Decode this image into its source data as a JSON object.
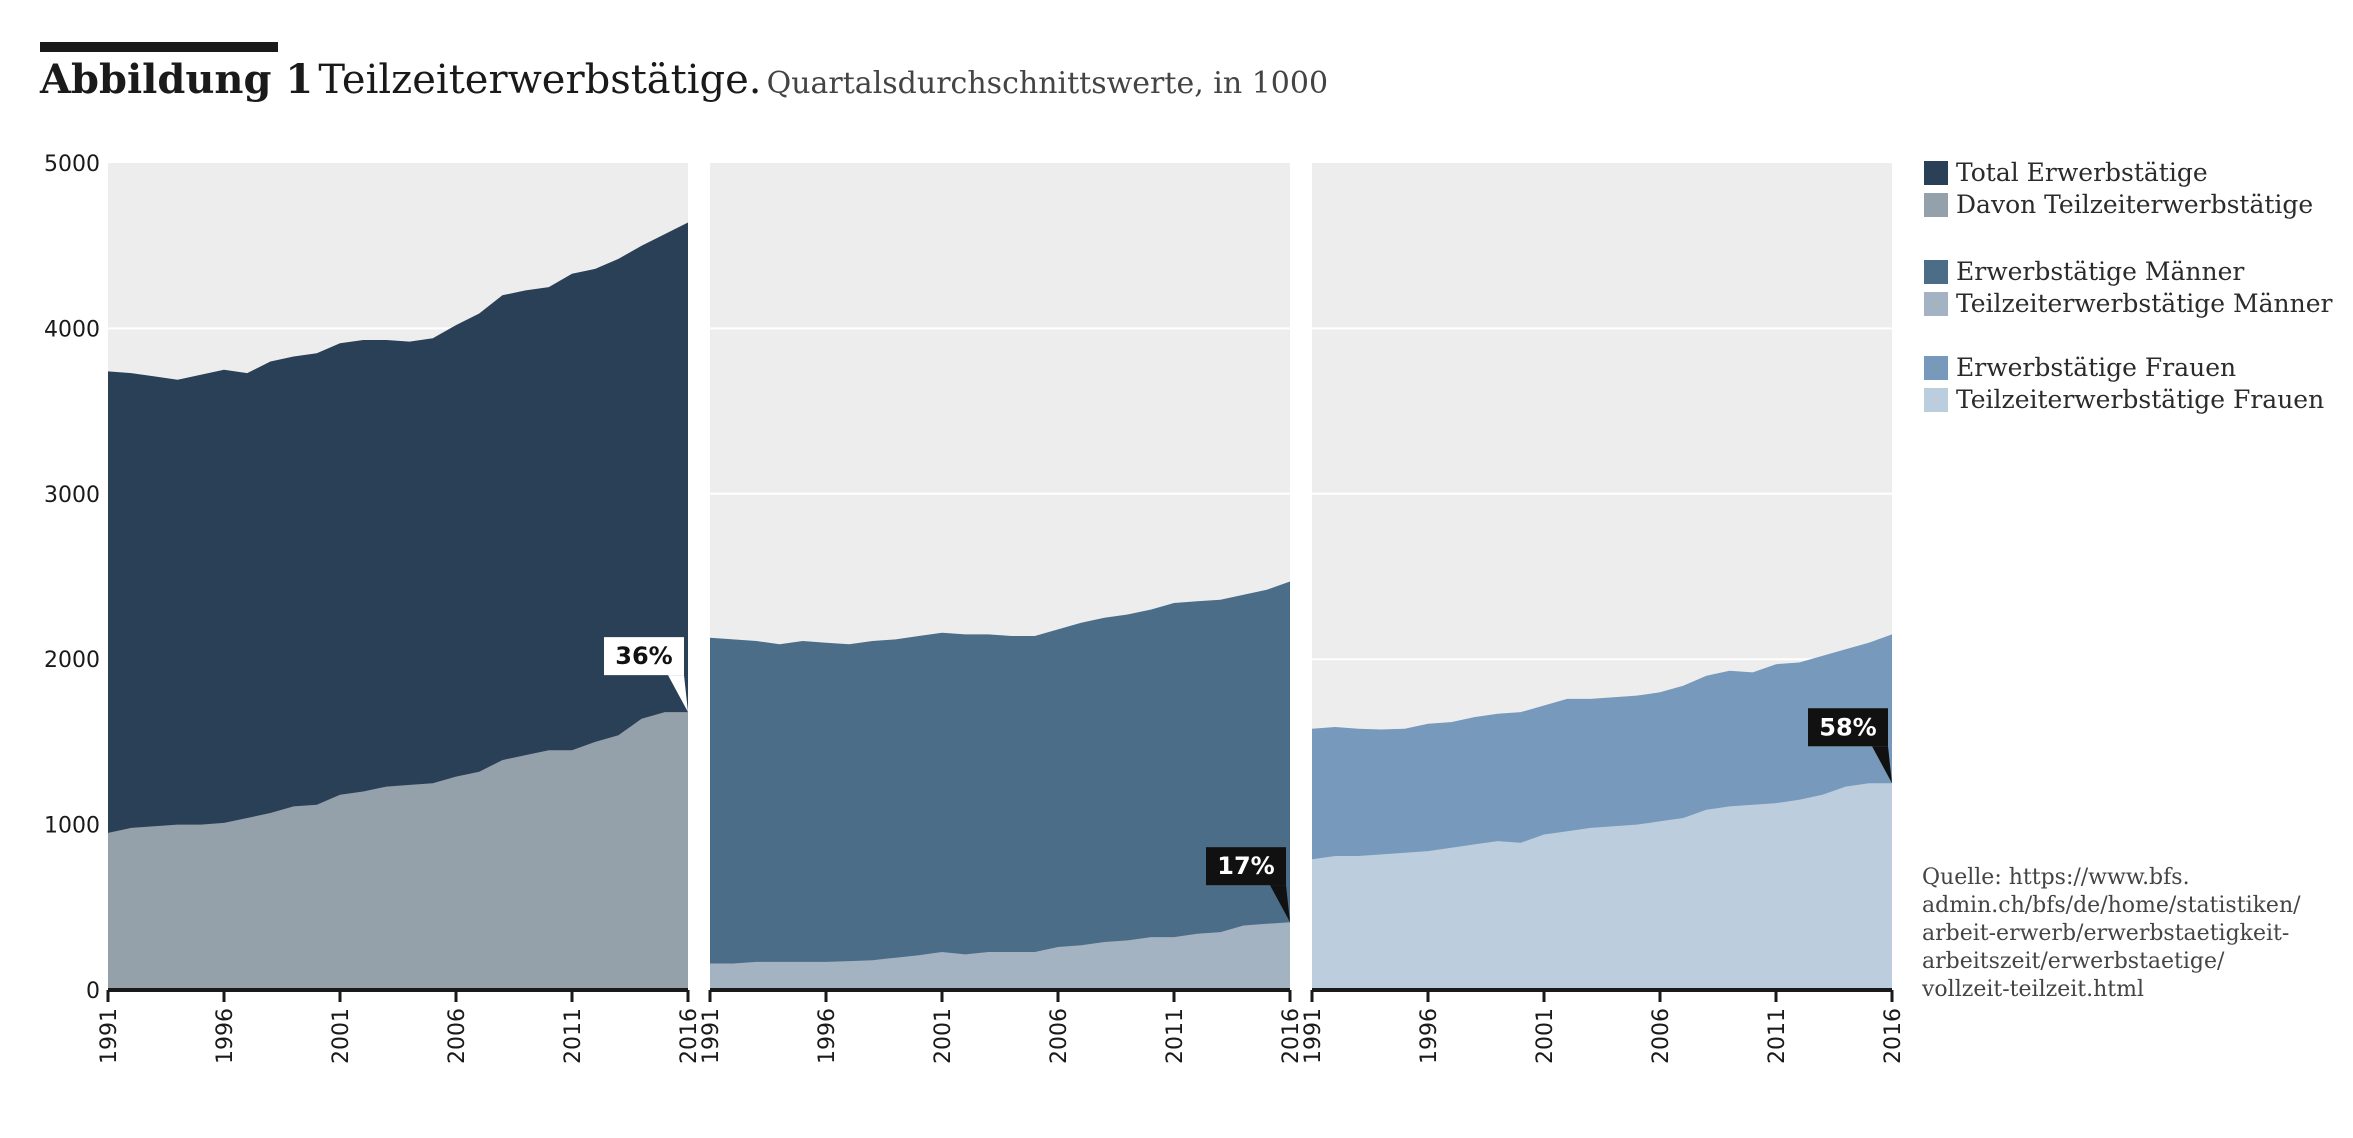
{
  "title": {
    "figure_label": "Abbildung 1",
    "main": "Teilzeiterwerbstätige.",
    "subtitle": "Quartalsdurchschnittswerte, in 1000"
  },
  "legend": [
    {
      "label": "Total Erwerbstätige",
      "color": "#2a4057"
    },
    {
      "label": "Davon Teilzeiterwerbstätige",
      "color": "#95a1aa"
    },
    {
      "label": "Erwerbstätige Männer",
      "color": "#4b6d88"
    },
    {
      "label": "Teilzeiterwerbstätige Männer",
      "color": "#a4b3c1"
    },
    {
      "label": "Erwerbstätige Frauen",
      "color": "#7799bb"
    },
    {
      "label": "Teilzeiterwerbstätige Frauen",
      "color": "#bccddd"
    }
  ],
  "source_lines": [
    "Quelle: https://www.bfs.",
    "admin.ch/bfs/de/home/statistiken/",
    "arbeit-erwerb/erwerbstaetigkeit-",
    "arbeitszeit/erwerbstaetige/",
    "vollzeit-teilzeit.html"
  ],
  "colors": {
    "panel_bg": "#ededee",
    "grid": "#ffffff",
    "axis": "#1a1a1a",
    "callout_light_bg": "#ffffff",
    "callout_dark_bg": "#111111"
  },
  "chart_data": [
    {
      "type": "area",
      "x": [
        1991,
        1992,
        1993,
        1994,
        1995,
        1996,
        1997,
        1998,
        1999,
        2000,
        2001,
        2002,
        2003,
        2004,
        2005,
        2006,
        2007,
        2008,
        2009,
        2010,
        2011,
        2012,
        2013,
        2014,
        2015,
        2016
      ],
      "xticks": [
        1991,
        1996,
        2001,
        2006,
        2011,
        2016
      ],
      "yticks": [
        0,
        1000,
        2000,
        3000,
        4000,
        5000
      ],
      "ylim": [
        0,
        5000
      ],
      "grid": true,
      "series": [
        {
          "name": "Total Erwerbstätige",
          "color": "#2a4057",
          "values": [
            3740,
            3730,
            3710,
            3690,
            3720,
            3750,
            3730,
            3800,
            3830,
            3850,
            3910,
            3930,
            3930,
            3920,
            3940,
            4020,
            4090,
            4200,
            4230,
            4250,
            4330,
            4360,
            4420,
            4500,
            4570,
            4640
          ]
        },
        {
          "name": "Davon Teilzeiterwerbstätige",
          "color": "#95a1aa",
          "values": [
            950,
            980,
            990,
            1000,
            1000,
            1010,
            1040,
            1070,
            1110,
            1120,
            1180,
            1200,
            1230,
            1240,
            1250,
            1290,
            1320,
            1390,
            1420,
            1450,
            1450,
            1500,
            1540,
            1640,
            1680,
            1680
          ]
        }
      ],
      "callout": {
        "text": "36%",
        "x": 2016,
        "y": 1680,
        "style": "light"
      }
    },
    {
      "type": "area",
      "x": [
        1991,
        1992,
        1993,
        1994,
        1995,
        1996,
        1997,
        1998,
        1999,
        2000,
        2001,
        2002,
        2003,
        2004,
        2005,
        2006,
        2007,
        2008,
        2009,
        2010,
        2011,
        2012,
        2013,
        2014,
        2015,
        2016
      ],
      "xticks": [
        1991,
        1996,
        2001,
        2006,
        2011,
        2016
      ],
      "yticks": [
        0,
        1000,
        2000,
        3000,
        4000,
        5000
      ],
      "ylim": [
        0,
        5000
      ],
      "grid": true,
      "series": [
        {
          "name": "Erwerbstätige Männer",
          "color": "#4b6d88",
          "values": [
            2130,
            2120,
            2110,
            2090,
            2110,
            2100,
            2090,
            2110,
            2120,
            2140,
            2160,
            2150,
            2150,
            2140,
            2140,
            2180,
            2220,
            2250,
            2270,
            2300,
            2340,
            2350,
            2360,
            2390,
            2420,
            2470
          ]
        },
        {
          "name": "Teilzeiterwerbstätige Männer",
          "color": "#a4b3c1",
          "values": [
            160,
            160,
            170,
            170,
            170,
            170,
            175,
            180,
            195,
            210,
            230,
            215,
            230,
            230,
            230,
            260,
            270,
            290,
            300,
            320,
            320,
            340,
            350,
            390,
            400,
            410
          ]
        }
      ],
      "callout": {
        "text": "17%",
        "x": 2016,
        "y": 410,
        "style": "dark"
      }
    },
    {
      "type": "area",
      "x": [
        1991,
        1992,
        1993,
        1994,
        1995,
        1996,
        1997,
        1998,
        1999,
        2000,
        2001,
        2002,
        2003,
        2004,
        2005,
        2006,
        2007,
        2008,
        2009,
        2010,
        2011,
        2012,
        2013,
        2014,
        2015,
        2016
      ],
      "xticks": [
        1991,
        1996,
        2001,
        2006,
        2011,
        2016
      ],
      "yticks": [
        0,
        1000,
        2000,
        3000,
        4000,
        5000
      ],
      "ylim": [
        0,
        5000
      ],
      "grid": true,
      "series": [
        {
          "name": "Erwerbstätige Frauen",
          "color": "#7799bb",
          "values": [
            1580,
            1590,
            1580,
            1575,
            1580,
            1610,
            1620,
            1650,
            1670,
            1680,
            1720,
            1760,
            1760,
            1770,
            1780,
            1800,
            1840,
            1900,
            1930,
            1920,
            1970,
            1980,
            2020,
            2060,
            2100,
            2150
          ]
        },
        {
          "name": "Teilzeiterwerbstätige Frauen",
          "color": "#bccddd",
          "values": [
            790,
            810,
            810,
            820,
            830,
            840,
            860,
            880,
            900,
            890,
            940,
            960,
            980,
            990,
            1000,
            1020,
            1040,
            1090,
            1110,
            1120,
            1130,
            1150,
            1180,
            1230,
            1250,
            1250
          ]
        }
      ],
      "callout": {
        "text": "58%",
        "x": 2016,
        "y": 1250,
        "style": "dark"
      }
    }
  ]
}
